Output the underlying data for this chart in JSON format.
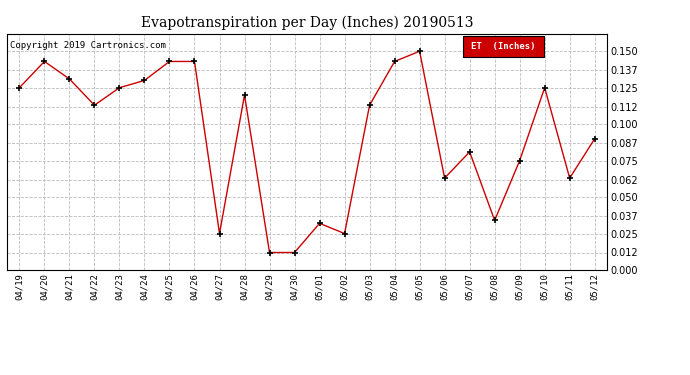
{
  "title": "Evapotranspiration per Day (Inches) 20190513",
  "copyright": "Copyright 2019 Cartronics.com",
  "legend_label": "ET  (Inches)",
  "legend_bg": "#cc0000",
  "legend_text_color": "#ffffff",
  "line_color": "#cc0000",
  "marker_color": "#000000",
  "background_color": "#ffffff",
  "grid_color": "#bbbbbb",
  "xlabels": [
    "04/19",
    "04/20",
    "04/21",
    "04/22",
    "04/23",
    "04/24",
    "04/25",
    "04/26",
    "04/27",
    "04/28",
    "04/29",
    "04/30",
    "05/01",
    "05/02",
    "05/03",
    "05/04",
    "05/05",
    "05/06",
    "05/07",
    "05/08",
    "05/09",
    "05/10",
    "05/11",
    "05/12"
  ],
  "values": [
    0.125,
    0.143,
    0.131,
    0.113,
    0.125,
    0.13,
    0.143,
    0.143,
    0.025,
    0.12,
    0.012,
    0.012,
    0.032,
    0.025,
    0.113,
    0.143,
    0.15,
    0.063,
    0.081,
    0.034,
    0.075,
    0.125,
    0.063,
    0.09
  ],
  "ylim": [
    0.0,
    0.162
  ],
  "yticks": [
    0.0,
    0.012,
    0.025,
    0.037,
    0.05,
    0.062,
    0.075,
    0.087,
    0.1,
    0.112,
    0.125,
    0.137,
    0.15
  ],
  "figsize": [
    6.9,
    3.75
  ],
  "dpi": 100
}
